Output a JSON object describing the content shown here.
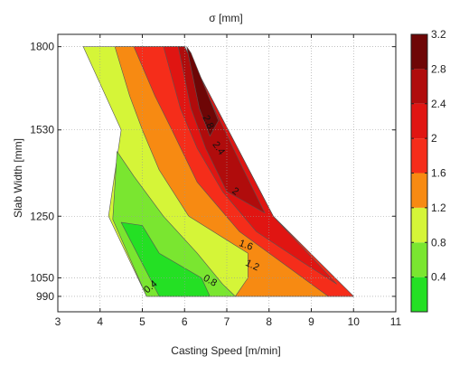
{
  "chart_data": {
    "type": "contour",
    "title": "σ [mm]",
    "xlabel": "Casting Speed [m/min]",
    "ylabel": "Slab Width [mm]",
    "xlim": [
      3,
      11
    ],
    "ylim": [
      940,
      1840
    ],
    "x_ticks": [
      "3",
      "4",
      "5",
      "6",
      "7",
      "8",
      "9",
      "10",
      "11"
    ],
    "y_ticks": [
      "990",
      "1050",
      "1250",
      "1530",
      "1800"
    ],
    "grid": true,
    "colorbar": {
      "range": [
        0,
        3.2
      ],
      "ticks": [
        "0.4",
        "0.8",
        "1.2",
        "1.6",
        "2",
        "2.4",
        "2.8",
        "3.2"
      ]
    },
    "levels": [
      {
        "min": 0.0,
        "max": 0.4,
        "color": "#24e024"
      },
      {
        "min": 0.4,
        "max": 0.8,
        "color": "#7ae630"
      },
      {
        "min": 0.8,
        "max": 1.2,
        "color": "#d5f538"
      },
      {
        "min": 1.2,
        "max": 1.6,
        "color": "#f78a12"
      },
      {
        "min": 1.6,
        "max": 2.0,
        "color": "#f52d1a"
      },
      {
        "min": 2.0,
        "max": 2.4,
        "color": "#e01512"
      },
      {
        "min": 2.4,
        "max": 2.8,
        "color": "#b00c0c"
      },
      {
        "min": 2.8,
        "max": 3.2,
        "color": "#6e0606"
      }
    ],
    "regions": [
      {
        "level": 2,
        "points": [
          [
            3.6,
            1800
          ],
          [
            6.0,
            1800
          ],
          [
            8.1,
            1250
          ],
          [
            10.0,
            990
          ],
          [
            5.1,
            990
          ],
          [
            4.2,
            1250
          ],
          [
            4.5,
            1530
          ]
        ]
      },
      {
        "level": 3,
        "points": [
          [
            4.35,
            1800
          ],
          [
            6.0,
            1800
          ],
          [
            8.1,
            1250
          ],
          [
            10.0,
            990
          ],
          [
            7.2,
            990
          ],
          [
            7.5,
            1050
          ],
          [
            7.5,
            1130
          ],
          [
            6.1,
            1250
          ],
          [
            5.4,
            1400
          ],
          [
            5.0,
            1530
          ],
          [
            4.7,
            1640
          ]
        ]
      },
      {
        "level": 4,
        "points": [
          [
            4.8,
            1800
          ],
          [
            6.0,
            1800
          ],
          [
            8.1,
            1250
          ],
          [
            10.0,
            990
          ],
          [
            9.4,
            990
          ],
          [
            8.3,
            1100
          ],
          [
            7.3,
            1200
          ],
          [
            6.3,
            1360
          ],
          [
            5.7,
            1530
          ],
          [
            5.3,
            1640
          ]
        ]
      },
      {
        "level": 5,
        "points": [
          [
            5.5,
            1800
          ],
          [
            6.0,
            1800
          ],
          [
            8.1,
            1250
          ],
          [
            9.6,
            1030
          ],
          [
            8.8,
            1100
          ],
          [
            7.7,
            1200
          ],
          [
            6.9,
            1330
          ],
          [
            6.3,
            1470
          ],
          [
            5.9,
            1600
          ]
        ]
      },
      {
        "level": 6,
        "points": [
          [
            5.85,
            1800
          ],
          [
            6.0,
            1800
          ],
          [
            7.4,
            1400
          ],
          [
            7.9,
            1260
          ],
          [
            7.0,
            1330
          ],
          [
            6.5,
            1470
          ],
          [
            6.15,
            1600
          ]
        ]
      },
      {
        "level": 7,
        "points": [
          [
            6.05,
            1800
          ],
          [
            6.15,
            1780
          ],
          [
            6.8,
            1560
          ],
          [
            6.6,
            1510
          ],
          [
            6.35,
            1600
          ],
          [
            6.2,
            1700
          ]
        ]
      },
      {
        "level": 1,
        "points": [
          [
            4.3,
            1240
          ],
          [
            5.1,
            990
          ],
          [
            7.2,
            990
          ],
          [
            6.9,
            1030
          ],
          [
            6.3,
            1130
          ],
          [
            5.5,
            1250
          ],
          [
            4.8,
            1380
          ],
          [
            4.4,
            1460
          ]
        ]
      },
      {
        "level": 0,
        "points": [
          [
            4.5,
            1230
          ],
          [
            5.4,
            990
          ],
          [
            6.6,
            990
          ],
          [
            6.4,
            1050
          ],
          [
            5.4,
            1130
          ],
          [
            5.0,
            1220
          ]
        ]
      }
    ],
    "contour_labels": [
      {
        "text": "0.4",
        "x": 5.2,
        "y": 1020,
        "angle": -40
      },
      {
        "text": "0.8",
        "x": 6.6,
        "y": 1040,
        "angle": 30
      },
      {
        "text": "1.2",
        "x": 7.6,
        "y": 1090,
        "angle": 25
      },
      {
        "text": "1.6",
        "x": 7.45,
        "y": 1155,
        "angle": 20
      },
      {
        "text": "2",
        "x": 7.2,
        "y": 1330,
        "angle": 35
      },
      {
        "text": "2.4",
        "x": 6.8,
        "y": 1470,
        "angle": 55
      },
      {
        "text": "2.8",
        "x": 6.55,
        "y": 1555,
        "angle": 65
      }
    ]
  }
}
